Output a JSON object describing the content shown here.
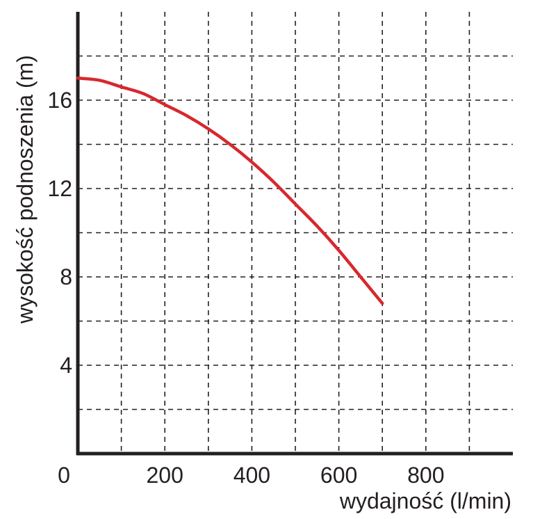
{
  "chart_data": {
    "type": "line",
    "title": "",
    "xlabel": "wydajność (l/min)",
    "ylabel": "wysokość podnoszenia (m)",
    "xlim": [
      0,
      1000
    ],
    "ylim": [
      0,
      20
    ],
    "x_ticks": [
      0,
      200,
      400,
      600,
      800
    ],
    "x_tick_labels": [
      "0",
      "200",
      "400",
      "600",
      "800"
    ],
    "y_ticks": [
      4,
      8,
      12,
      16
    ],
    "y_tick_labels": [
      "4",
      "8",
      "12",
      "16"
    ],
    "x_grid": [
      100,
      200,
      300,
      400,
      500,
      600,
      700,
      800,
      900
    ],
    "y_grid": [
      2,
      4,
      6,
      8,
      10,
      12,
      14,
      16,
      18
    ],
    "grid": true,
    "grid_style": "dashed",
    "legend": "none",
    "series": [
      {
        "color": "#d7282f",
        "x": [
          0,
          50,
          100,
          150,
          200,
          250,
          300,
          350,
          400,
          450,
          500,
          550,
          600,
          650,
          700
        ],
        "y": [
          17.0,
          16.9,
          16.6,
          16.3,
          15.8,
          15.3,
          14.7,
          14.0,
          13.2,
          12.3,
          11.3,
          10.3,
          9.2,
          8.0,
          6.8
        ]
      }
    ]
  }
}
